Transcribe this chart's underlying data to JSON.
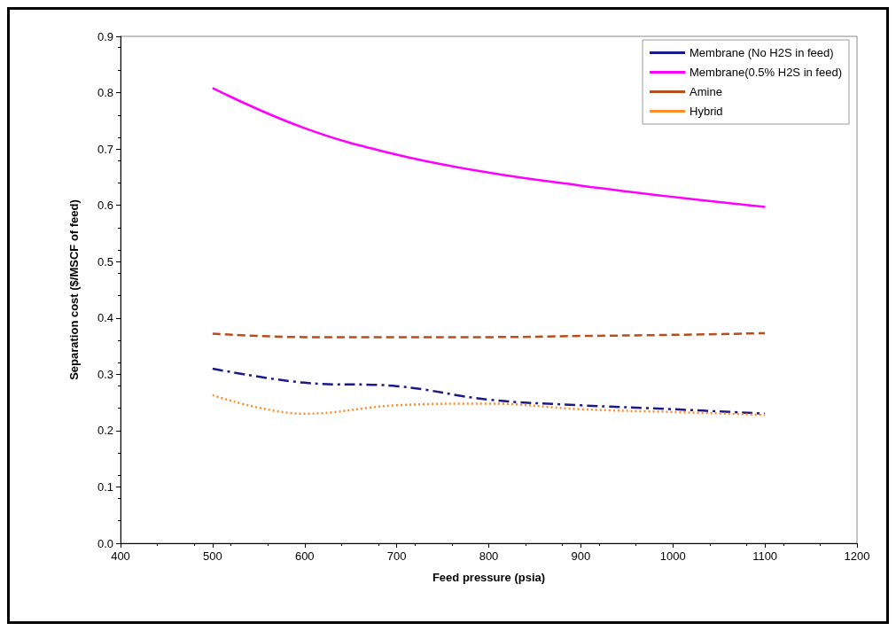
{
  "chart_data": {
    "type": "line",
    "xlabel": "Feed pressure (psia)",
    "ylabel": "Separation cost ($/MSCF of feed)",
    "x": [
      500,
      600,
      700,
      800,
      900,
      1000,
      1100
    ],
    "xlim": [
      400,
      1200
    ],
    "xticks": [
      400,
      500,
      600,
      700,
      800,
      900,
      1000,
      1100,
      1200
    ],
    "ylim": [
      0,
      0.9
    ],
    "yticks": [
      {
        "value": 0,
        "label": "0.0"
      },
      0.1,
      0.2,
      0.3,
      0.4,
      0.5,
      0.6,
      0.7,
      0.8,
      0.9
    ],
    "grid": false,
    "legend": "top right",
    "marker": "none",
    "series": [
      {
        "name": "Membrane (No H2S in feed)",
        "color": "#1a1a8c",
        "line_style": "dashdot",
        "values": [
          0.31,
          0.285,
          0.279,
          0.255,
          0.245,
          0.238,
          0.23
        ]
      },
      {
        "name": "Membrane(0.5% H2S in feed)",
        "color": "#ff00ff",
        "line_style": "solid",
        "values": [
          0.808,
          0.737,
          0.69,
          0.658,
          0.635,
          0.615,
          0.597
        ]
      },
      {
        "name": "Amine",
        "color": "#b5501e",
        "line_style": "dashed",
        "values": [
          0.372,
          0.366,
          0.366,
          0.366,
          0.368,
          0.37,
          0.373
        ]
      },
      {
        "name": "Hybrid",
        "color": "#ff8c2a",
        "line_style": "dotted",
        "values": [
          0.263,
          0.23,
          0.245,
          0.248,
          0.238,
          0.233,
          0.228
        ]
      }
    ]
  }
}
